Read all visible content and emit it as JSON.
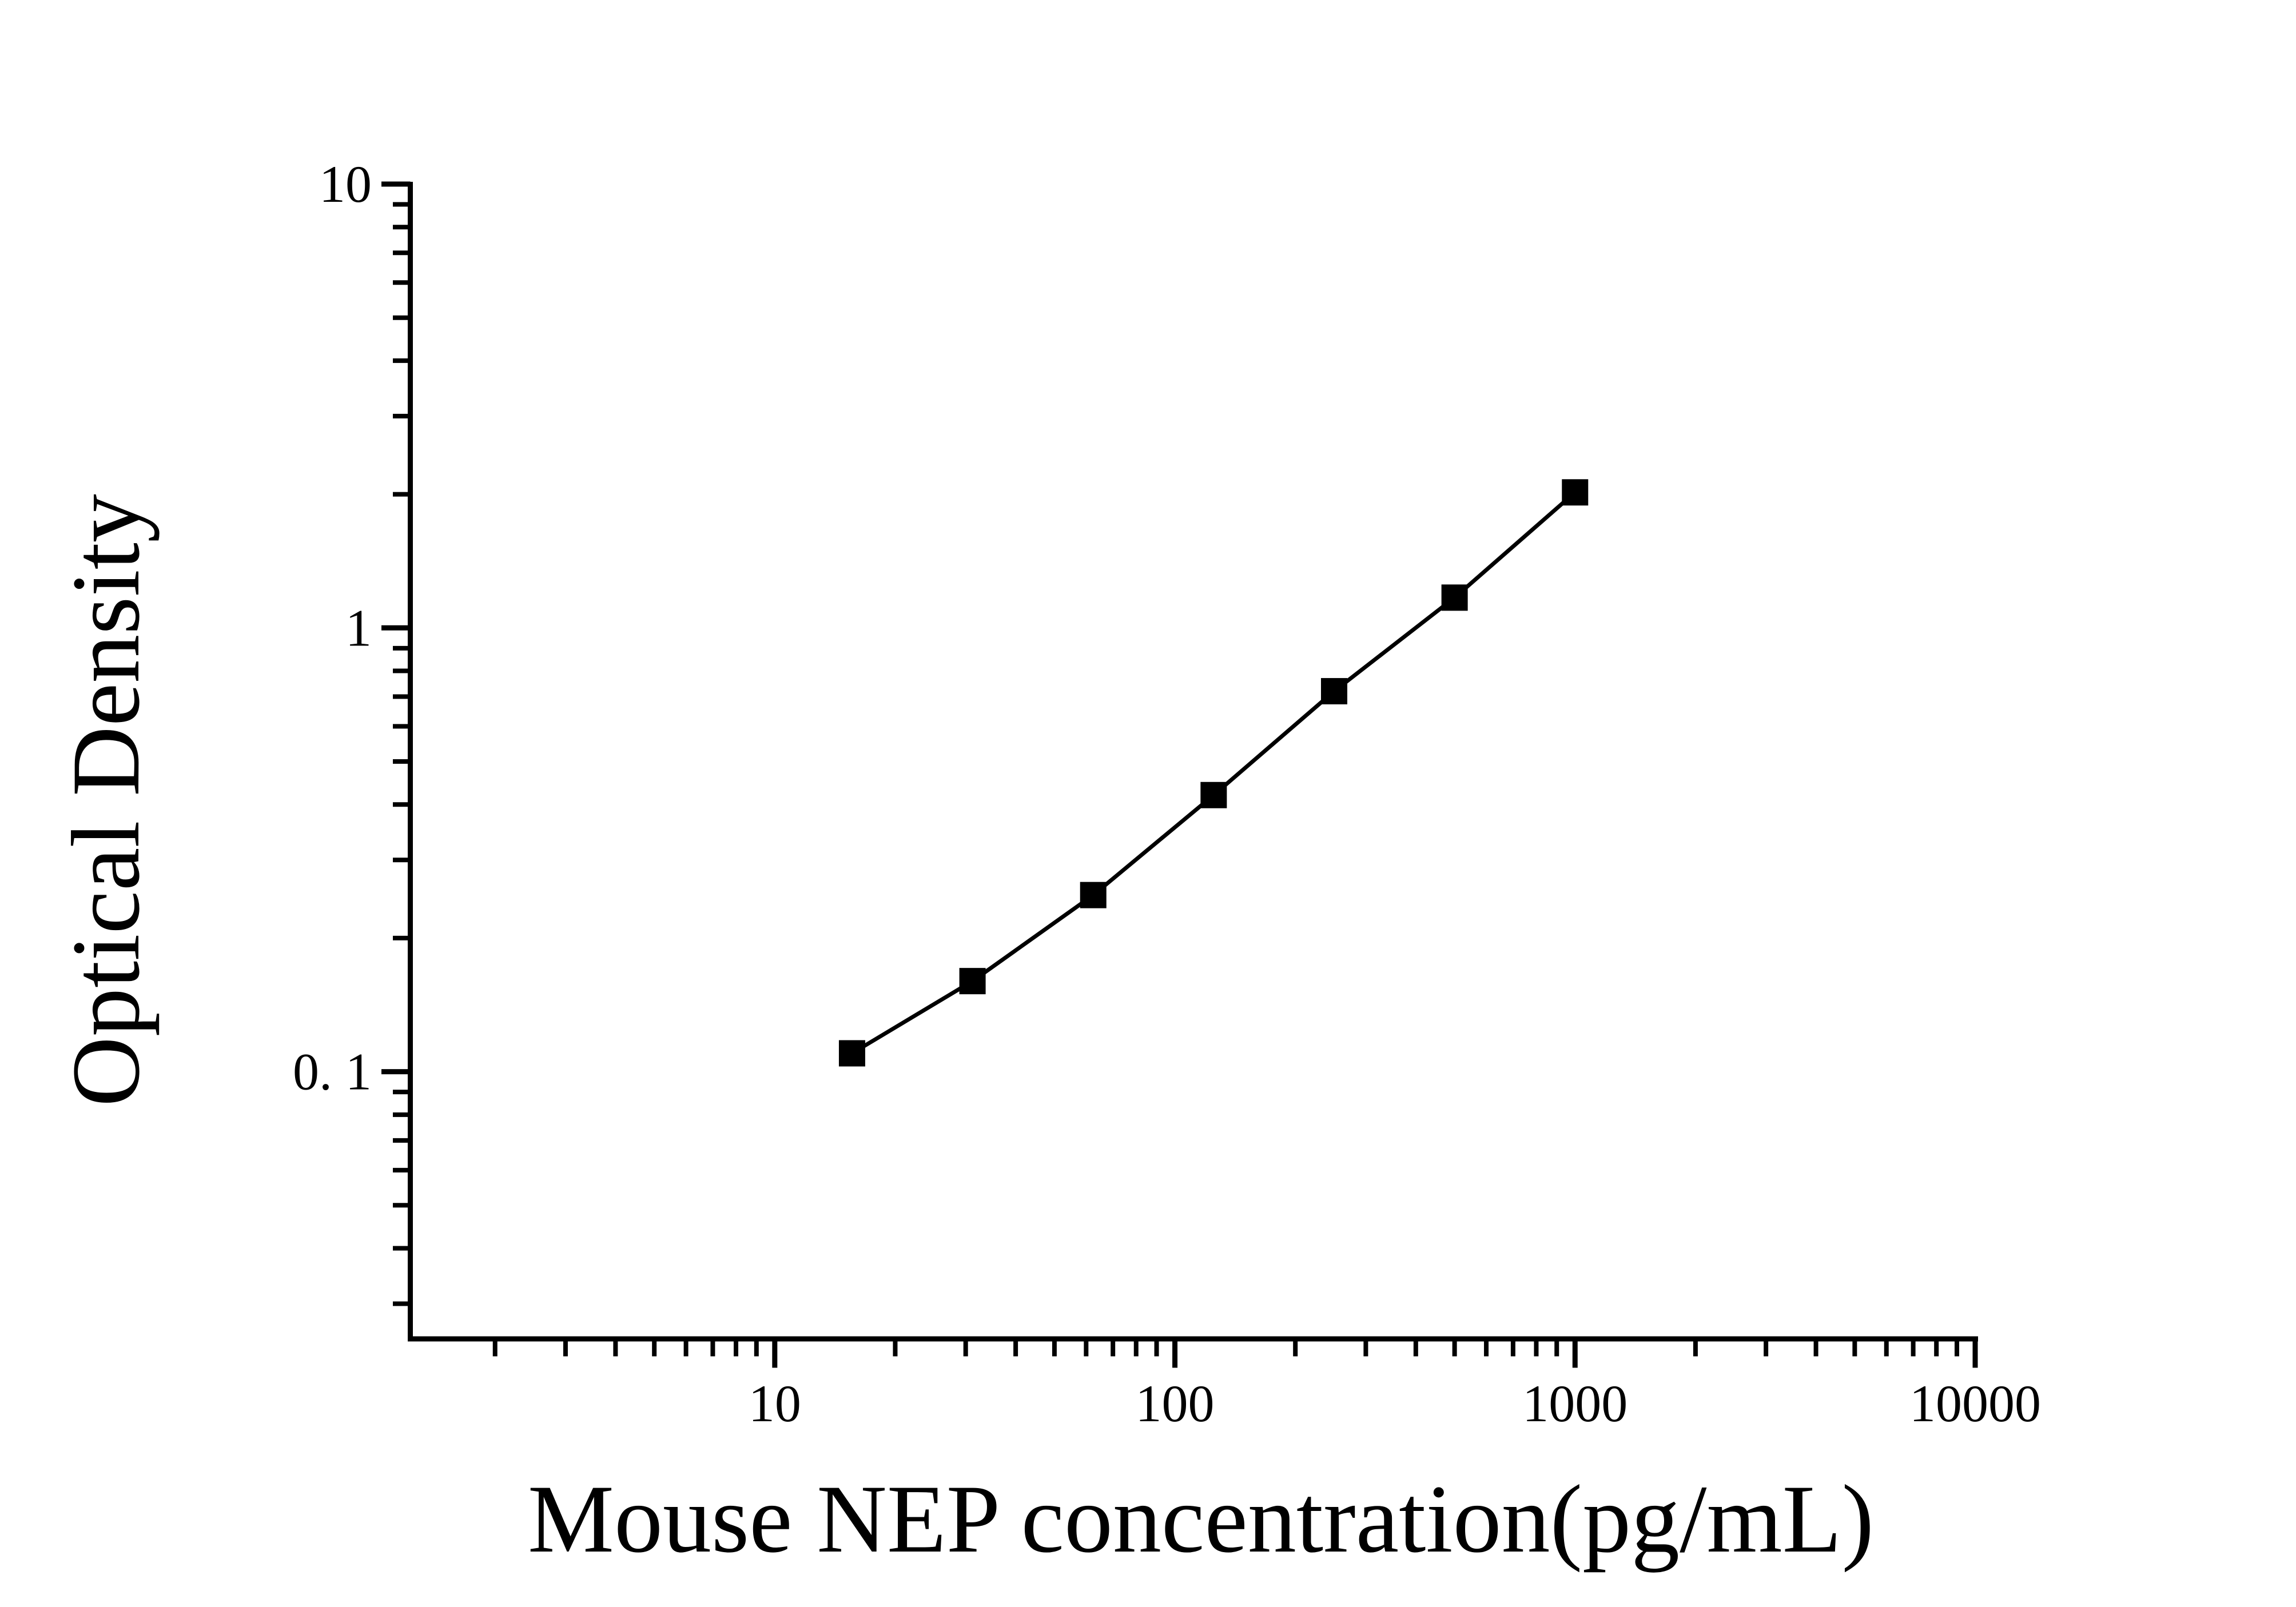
{
  "colors": {
    "ink": "#000000",
    "background": "#ffffff"
  },
  "chart_data": {
    "type": "line",
    "title": "",
    "xlabel": "Mouse NEP concentration(pg/mL)",
    "ylabel": "Optical Density",
    "x_scale": "log",
    "y_scale": "log",
    "x_range": [
      1.23,
      10000
    ],
    "y_range": [
      0.025,
      10
    ],
    "grid": "off",
    "legend": "none",
    "x_ticks": [
      {
        "value": 10,
        "label": "10"
      },
      {
        "value": 100,
        "label": "100"
      },
      {
        "value": 1000,
        "label": "1000"
      },
      {
        "value": 10000,
        "label": "10000"
      }
    ],
    "y_ticks": [
      {
        "value": 10,
        "label": "10"
      },
      {
        "value": 1,
        "label": "1"
      },
      {
        "value": 0.1,
        "label": "0. 1"
      }
    ],
    "series": [
      {
        "marker": "filled-square",
        "line": "solid",
        "x": [
          15.6,
          31.2,
          62.5,
          125,
          250,
          500,
          1000
        ],
        "y": [
          0.11,
          0.16,
          0.25,
          0.42,
          0.72,
          1.17,
          2.02
        ]
      }
    ]
  }
}
